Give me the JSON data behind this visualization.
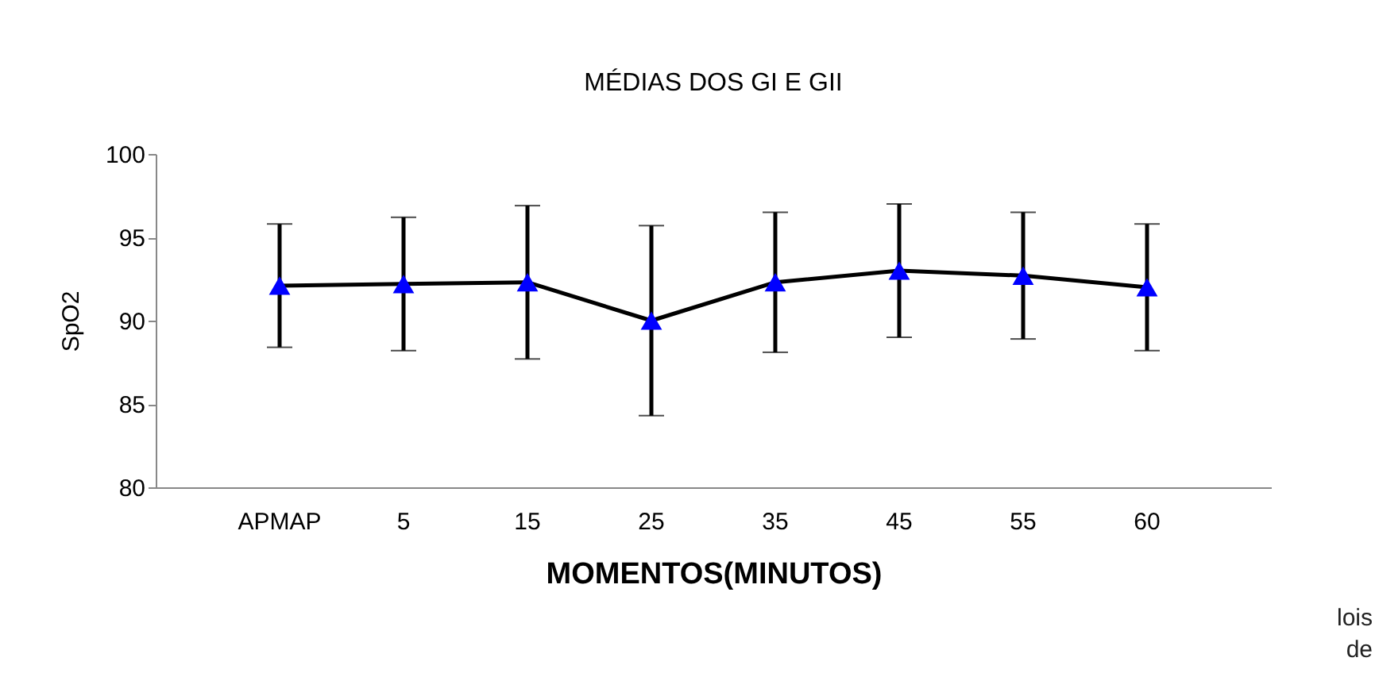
{
  "chart_data": {
    "type": "line",
    "title": "MÉDIAS DOS GI E GII",
    "xlabel": "MOMENTOS(MINUTOS)",
    "ylabel": "SpO2",
    "categories": [
      "APMAP",
      "5",
      "15",
      "25",
      "35",
      "45",
      "55",
      "60"
    ],
    "series": [
      {
        "color": "#0000ff",
        "values": [
          92.1,
          92.2,
          92.3,
          90.0,
          92.3,
          93.0,
          92.7,
          92.0
        ],
        "errors": [
          3.7,
          4.0,
          4.6,
          5.7,
          4.2,
          4.0,
          3.8,
          3.8
        ]
      }
    ],
    "ylim": [
      80,
      100
    ],
    "yticks": [
      80,
      85,
      90,
      95,
      100
    ],
    "grid": false,
    "marker": "triangle",
    "line_style": "solid",
    "annotations": [
      "lois",
      "de"
    ]
  }
}
